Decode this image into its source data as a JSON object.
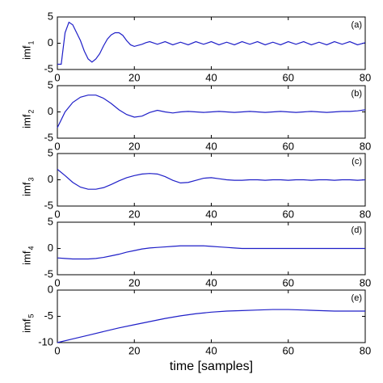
{
  "chart_data": [
    {
      "type": "line",
      "annotation": "(a)",
      "ylabel": "imf",
      "ylabel_sub": "1",
      "xlim": [
        0,
        80
      ],
      "ylim": [
        -5,
        5
      ],
      "xticks": [
        0,
        20,
        40,
        60,
        80
      ],
      "yticks": [
        -5,
        0,
        5
      ],
      "x": [
        0,
        1,
        2,
        3,
        4,
        5,
        6,
        7,
        8,
        9,
        10,
        11,
        12,
        13,
        14,
        15,
        16,
        17,
        18,
        19,
        20,
        21,
        22,
        23,
        24,
        26,
        28,
        30,
        32,
        34,
        36,
        38,
        40,
        42,
        44,
        46,
        48,
        50,
        52,
        54,
        56,
        58,
        60,
        62,
        64,
        66,
        68,
        70,
        72,
        74,
        76,
        78,
        80
      ],
      "series": [
        {
          "color": "#1f1fc8",
          "values": [
            -4,
            -4,
            2,
            4,
            3.5,
            2,
            0.5,
            -1.5,
            -3,
            -3.6,
            -3,
            -2,
            -0.5,
            0.8,
            1.6,
            2,
            2,
            1.5,
            0.5,
            -0.3,
            -0.6,
            -0.4,
            -0.2,
            0.1,
            0.3,
            -0.2,
            0.3,
            -0.3,
            0.2,
            -0.3,
            0.3,
            -0.2,
            0.3,
            -0.3,
            0.2,
            -0.3,
            0.3,
            -0.2,
            0.3,
            -0.3,
            0.2,
            -0.3,
            0.3,
            -0.2,
            0.3,
            -0.3,
            0.2,
            -0.3,
            0.3,
            -0.2,
            0.3,
            -0.3,
            0.1
          ]
        }
      ]
    },
    {
      "type": "line",
      "annotation": "(b)",
      "ylabel": "imf",
      "ylabel_sub": "2",
      "xlim": [
        0,
        80
      ],
      "ylim": [
        -5,
        5
      ],
      "xticks": [
        0,
        20,
        40,
        60,
        80
      ],
      "yticks": [
        -5,
        0,
        5
      ],
      "x": [
        0,
        2,
        4,
        6,
        8,
        10,
        12,
        14,
        16,
        18,
        20,
        22,
        24,
        26,
        28,
        30,
        32,
        34,
        36,
        38,
        40,
        42,
        44,
        46,
        48,
        50,
        52,
        54,
        56,
        58,
        60,
        62,
        64,
        66,
        68,
        70,
        72,
        74,
        76,
        78,
        80
      ],
      "series": [
        {
          "color": "#1f1fc8",
          "values": [
            -3,
            0,
            1.8,
            2.8,
            3.2,
            3.2,
            2.6,
            1.6,
            0.4,
            -0.5,
            -1,
            -0.8,
            -0.1,
            0.3,
            0,
            -0.2,
            0,
            0.1,
            0,
            -0.1,
            0,
            0.1,
            0,
            -0.1,
            0,
            0.1,
            0,
            -0.1,
            0,
            0.1,
            0,
            -0.1,
            0,
            0.1,
            0,
            -0.1,
            0,
            0.1,
            0.1,
            0.2,
            0.4
          ]
        }
      ]
    },
    {
      "type": "line",
      "annotation": "(c)",
      "ylabel": "imf",
      "ylabel_sub": "3",
      "xlim": [
        0,
        80
      ],
      "ylim": [
        -5,
        5
      ],
      "xticks": [
        0,
        20,
        40,
        60,
        80
      ],
      "yticks": [
        -5,
        0,
        5
      ],
      "x": [
        0,
        2,
        4,
        6,
        8,
        10,
        12,
        14,
        16,
        18,
        20,
        22,
        24,
        26,
        28,
        30,
        32,
        34,
        36,
        38,
        40,
        42,
        44,
        46,
        48,
        50,
        52,
        54,
        56,
        58,
        60,
        62,
        64,
        66,
        68,
        70,
        72,
        74,
        76,
        78,
        80
      ],
      "series": [
        {
          "color": "#1f1fc8",
          "values": [
            2,
            0.8,
            -0.5,
            -1.4,
            -1.8,
            -1.8,
            -1.5,
            -0.9,
            -0.2,
            0.4,
            0.8,
            1.1,
            1.2,
            1.1,
            0.6,
            -0.1,
            -0.6,
            -0.5,
            -0.1,
            0.3,
            0.4,
            0.2,
            0,
            -0.1,
            -0.1,
            0,
            0,
            -0.1,
            0,
            0,
            -0.1,
            0,
            0,
            -0.1,
            0,
            0,
            -0.1,
            0,
            0,
            -0.1,
            0
          ]
        }
      ]
    },
    {
      "type": "line",
      "annotation": "(d)",
      "ylabel": "imf",
      "ylabel_sub": "4",
      "xlim": [
        0,
        80
      ],
      "ylim": [
        -5,
        5
      ],
      "xticks": [
        0,
        20,
        40,
        60,
        80
      ],
      "yticks": [
        -5,
        0,
        5
      ],
      "x": [
        0,
        2,
        4,
        6,
        8,
        10,
        12,
        14,
        16,
        18,
        20,
        22,
        24,
        26,
        28,
        30,
        32,
        34,
        36,
        38,
        40,
        42,
        44,
        46,
        48,
        50,
        52,
        54,
        56,
        58,
        60,
        62,
        64,
        66,
        68,
        70,
        72,
        74,
        76,
        78,
        80
      ],
      "series": [
        {
          "color": "#1f1fc8",
          "values": [
            -1.8,
            -1.9,
            -2,
            -2,
            -2,
            -1.9,
            -1.7,
            -1.4,
            -1.1,
            -0.7,
            -0.4,
            -0.1,
            0.1,
            0.2,
            0.3,
            0.4,
            0.5,
            0.5,
            0.5,
            0.5,
            0.4,
            0.3,
            0.2,
            0.1,
            0,
            0,
            0,
            0,
            0,
            0,
            0,
            0,
            0,
            0,
            0,
            0,
            0,
            0,
            0,
            0,
            0
          ]
        }
      ]
    },
    {
      "type": "line",
      "annotation": "(e)",
      "ylabel": "imf",
      "ylabel_sub": "5",
      "xlabel": "time [samples]",
      "xlim": [
        0,
        80
      ],
      "ylim": [
        -10,
        0
      ],
      "xticks": [
        0,
        20,
        40,
        60,
        80
      ],
      "yticks": [
        -10,
        -5,
        0
      ],
      "x": [
        0,
        4,
        8,
        12,
        16,
        20,
        24,
        28,
        32,
        36,
        40,
        44,
        48,
        52,
        56,
        60,
        64,
        68,
        72,
        76,
        80
      ],
      "series": [
        {
          "color": "#1f1fc8",
          "values": [
            -10,
            -9.3,
            -8.6,
            -7.9,
            -7.2,
            -6.6,
            -6,
            -5.4,
            -4.9,
            -4.5,
            -4.2,
            -4,
            -3.9,
            -3.8,
            -3.7,
            -3.7,
            -3.8,
            -3.9,
            -4,
            -4,
            -4
          ]
        }
      ]
    }
  ]
}
